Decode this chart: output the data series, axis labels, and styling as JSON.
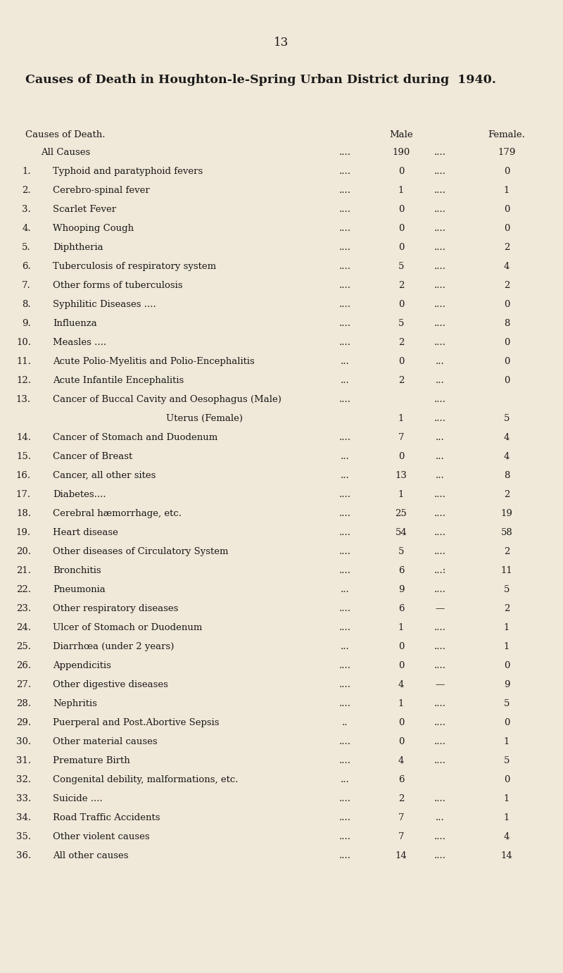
{
  "page_number": "13",
  "title": "Causes of Death in Houghton-le-Spring Urban District during  1940.",
  "col_header_left": "Causes of Death.",
  "col_header_male": "Male",
  "col_header_female": "Female.",
  "background_color": "#f0e8d8",
  "text_color": "#1a1a1a",
  "rows": [
    {
      "label": "All Causes",
      "num": "",
      "male": "190",
      "female": "179",
      "dots_left": "....",
      "dots_mid": "...."
    },
    {
      "label": "Typhoid and paratyphoid fevers",
      "num": "1.",
      "male": "0",
      "female": "0",
      "dots_left": "....",
      "dots_mid": "...."
    },
    {
      "label": "Cerebro-spinal fever",
      "num": "2.",
      "male": "1",
      "female": "1",
      "dots_left": "....",
      "dots_mid": "...."
    },
    {
      "label": "Scarlet Fever",
      "num": "3.",
      "male": "0",
      "female": "0",
      "dots_left": "....",
      "dots_mid": "...."
    },
    {
      "label": "Whooping Cough",
      "num": "4.",
      "male": "0",
      "female": "0",
      "dots_left": "....",
      "dots_mid": "...."
    },
    {
      "label": "Diphtheria",
      "num": "5.",
      "male": "0",
      "female": "2",
      "dots_left": "....",
      "dots_mid": "...."
    },
    {
      "label": "Tuberculosis of respiratory system",
      "num": "6.",
      "male": "5",
      "female": "4",
      "dots_left": "....",
      "dots_mid": "...."
    },
    {
      "label": "Other forms of tuberculosis",
      "num": "7.",
      "male": "2",
      "female": "2",
      "dots_left": "....",
      "dots_mid": "...."
    },
    {
      "label": "Syphilitic Diseases ....",
      "num": "8.",
      "male": "0",
      "female": "0",
      "dots_left": "....",
      "dots_mid": "...."
    },
    {
      "label": "Influenza",
      "num": "9.",
      "male": "5",
      "female": "8",
      "dots_left": "....",
      "dots_mid": "...."
    },
    {
      "label": "Measles ....",
      "num": "10.",
      "male": "2",
      "female": "0",
      "dots_left": "....",
      "dots_mid": "...."
    },
    {
      "label": "Acute Polio-Myelitis and Polio-Encephalitis",
      "num": "11.",
      "male": "0",
      "female": "0",
      "dots_left": "...",
      "dots_mid": "..."
    },
    {
      "label": "Acute Infantile Encephalitis",
      "num": "12.",
      "male": "2",
      "female": "0",
      "dots_left": "...",
      "dots_mid": "..."
    },
    {
      "label": "Cancer of Buccal Cavity and Oesophagus (Male)",
      "num": "13.",
      "male": "",
      "female": "",
      "dots_left": "....",
      "dots_mid": "...."
    },
    {
      "label": "Uterus (Female)",
      "num": "",
      "male": "1",
      "female": "5",
      "dots_left": "",
      "dots_mid": "...."
    },
    {
      "label": "Cancer of Stomach and Duodenum",
      "num": "14.",
      "male": "7",
      "female": "4",
      "dots_left": "....",
      "dots_mid": "..."
    },
    {
      "label": "Cancer of Breast",
      "num": "15.",
      "male": "0",
      "female": "4",
      "dots_left": "...",
      "dots_mid": "..."
    },
    {
      "label": "Cancer, all other sites",
      "num": "16.",
      "male": "13",
      "female": "8",
      "dots_left": "...",
      "dots_mid": "..."
    },
    {
      "label": "Diabetes....",
      "num": "17.",
      "male": "1",
      "female": "2",
      "dots_left": "....",
      "dots_mid": "...."
    },
    {
      "label": "Cerebral hæmorrhage, etc.",
      "num": "18.",
      "male": "25",
      "female": "19",
      "dots_left": "....",
      "dots_mid": "...."
    },
    {
      "label": "Heart disease",
      "num": "19.",
      "male": "54",
      "female": "58",
      "dots_left": "....",
      "dots_mid": "...."
    },
    {
      "label": "Other diseases of Circulatory System",
      "num": "20.",
      "male": "5",
      "female": "2",
      "dots_left": "....",
      "dots_mid": "...."
    },
    {
      "label": "Bronchitis",
      "num": "21.",
      "male": "6",
      "female": "11",
      "dots_left": "....",
      "dots_mid": "...:"
    },
    {
      "label": "Pneumonia",
      "num": "22.",
      "male": "9",
      "female": "5",
      "dots_left": "...",
      "dots_mid": "...."
    },
    {
      "label": "Other respiratory diseases",
      "num": "23.",
      "male": "6",
      "female": "2",
      "dots_left": "....",
      "dots_mid": "—"
    },
    {
      "label": "Ulcer of Stomach or Duodenum",
      "num": "24.",
      "male": "1",
      "female": "1",
      "dots_left": "....",
      "dots_mid": "...."
    },
    {
      "label": "Diarrhœa (under 2 years)",
      "num": "25.",
      "male": "0",
      "female": "1",
      "dots_left": "...",
      "dots_mid": "...."
    },
    {
      "label": "Appendicitis",
      "num": "26.",
      "male": "0",
      "female": "0",
      "dots_left": "....",
      "dots_mid": "...."
    },
    {
      "label": "Other digestive diseases",
      "num": "27.",
      "male": "4",
      "female": "9",
      "dots_left": "....",
      "dots_mid": "—"
    },
    {
      "label": "Nephritis",
      "num": "28.",
      "male": "1",
      "female": "5",
      "dots_left": "....",
      "dots_mid": "...."
    },
    {
      "label": "Puerperal and Post.Abortive Sepsis",
      "num": "29.",
      "male": "0",
      "female": "0",
      "dots_left": "..",
      "dots_mid": "...."
    },
    {
      "label": "Other material causes",
      "num": "30.",
      "male": "0",
      "female": "1",
      "dots_left": "....",
      "dots_mid": "...."
    },
    {
      "label": "Premature Birth",
      "num": "31.",
      "male": "4",
      "female": "5",
      "dots_left": "....",
      "dots_mid": "...."
    },
    {
      "label": "Congenital debility, malformations, etc.",
      "num": "32.",
      "male": "6",
      "female": "0",
      "dots_left": "...",
      "dots_mid": ""
    },
    {
      "label": "Suicide ....",
      "num": "33.",
      "male": "2",
      "female": "1",
      "dots_left": "....",
      "dots_mid": "...."
    },
    {
      "label": "Road Traffic Accidents",
      "num": "34.",
      "male": "7",
      "female": "1",
      "dots_left": "....",
      "dots_mid": "..."
    },
    {
      "label": "Other violent causes",
      "num": "35.",
      "male": "7",
      "female": "4",
      "dots_left": "....",
      "dots_mid": "...."
    },
    {
      "label": "All other causes",
      "num": "36.",
      "male": "14",
      "female": "14",
      "dots_left": "....",
      "dots_mid": "...."
    }
  ],
  "fs_page": 12,
  "fs_title": 12.5,
  "fs_header": 9.5,
  "fs_body": 9.5
}
